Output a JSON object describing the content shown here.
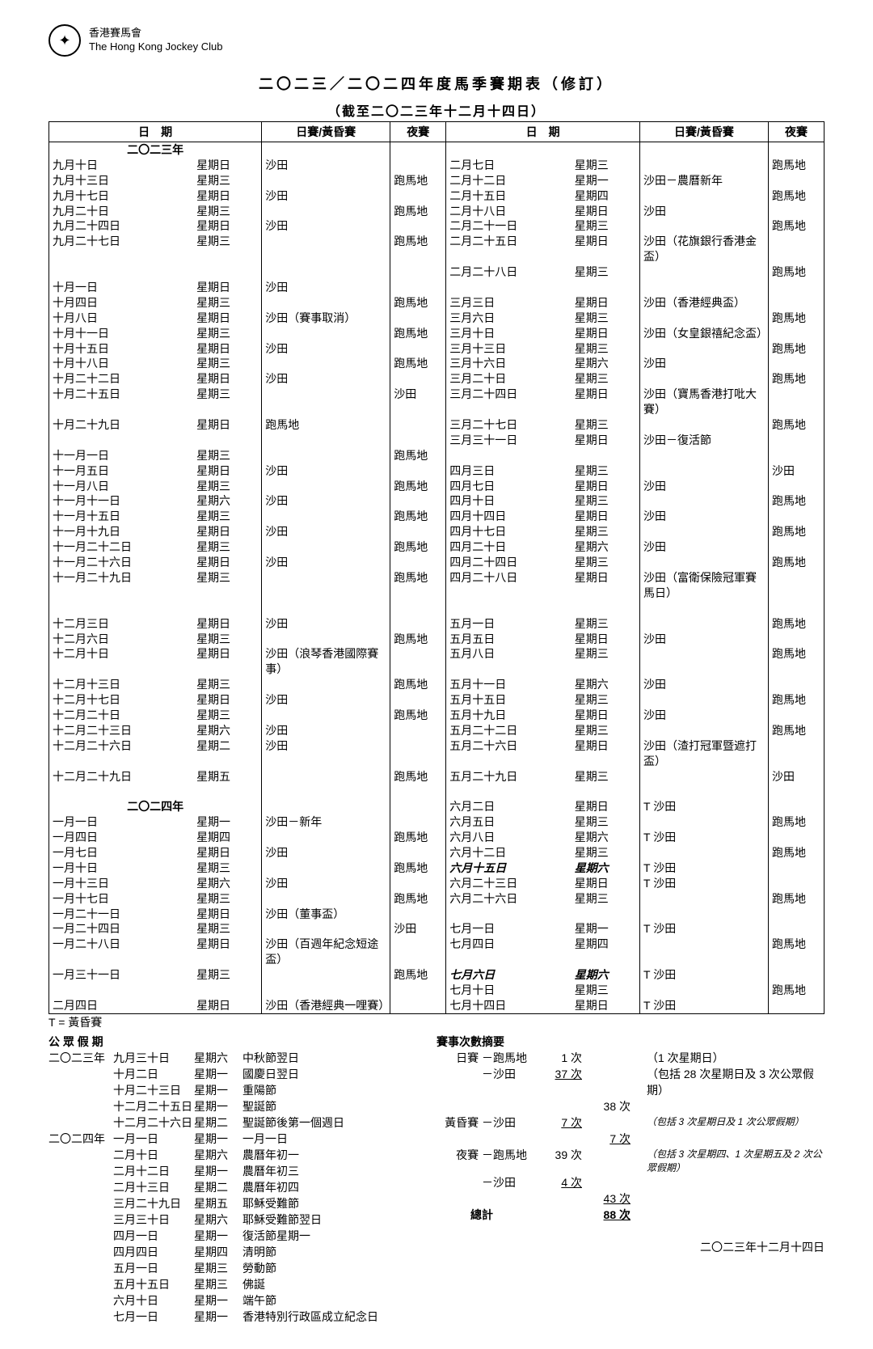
{
  "org": {
    "zh": "香港賽馬會",
    "en": "The Hong Kong Jockey Club"
  },
  "title": "二〇二三／二〇二四年度馬季賽期表（修訂）",
  "subtitle": "（截至二〇二三年十二月十四日）",
  "headers": {
    "date": "日　期",
    "day_twilight": "日賽/黃昏賽",
    "night": "夜賽"
  },
  "year2023": "二〇二三年",
  "year2024": "二〇二四年",
  "left_rows": [
    {
      "d": "九月十日",
      "w": "星期日",
      "a": "沙田",
      "n": ""
    },
    {
      "d": "九月十三日",
      "w": "星期三",
      "a": "",
      "n": "跑馬地"
    },
    {
      "d": "九月十七日",
      "w": "星期日",
      "a": "沙田",
      "n": ""
    },
    {
      "d": "九月二十日",
      "w": "星期三",
      "a": "",
      "n": "跑馬地"
    },
    {
      "d": "九月二十四日",
      "w": "星期日",
      "a": "沙田",
      "n": ""
    },
    {
      "d": "九月二十七日",
      "w": "星期三",
      "a": "",
      "n": "跑馬地"
    },
    {
      "sp": true
    },
    {
      "d": "十月一日",
      "w": "星期日",
      "a": "沙田",
      "n": ""
    },
    {
      "d": "十月四日",
      "w": "星期三",
      "a": "",
      "n": "跑馬地"
    },
    {
      "d": "十月八日",
      "w": "星期日",
      "a": "沙田（賽事取消）",
      "n": ""
    },
    {
      "d": "十月十一日",
      "w": "星期三",
      "a": "",
      "n": "跑馬地"
    },
    {
      "d": "十月十五日",
      "w": "星期日",
      "a": "沙田",
      "n": ""
    },
    {
      "d": "十月十八日",
      "w": "星期三",
      "a": "",
      "n": "跑馬地"
    },
    {
      "d": "十月二十二日",
      "w": "星期日",
      "a": "沙田",
      "n": ""
    },
    {
      "d": "十月二十五日",
      "w": "星期三",
      "a": "",
      "n": "沙田"
    },
    {
      "d": "十月二十九日",
      "w": "星期日",
      "a": "跑馬地",
      "n": ""
    },
    {
      "sp": true
    },
    {
      "d": "十一月一日",
      "w": "星期三",
      "a": "",
      "n": "跑馬地"
    },
    {
      "d": "十一月五日",
      "w": "星期日",
      "a": "沙田",
      "n": ""
    },
    {
      "d": "十一月八日",
      "w": "星期三",
      "a": "",
      "n": "跑馬地"
    },
    {
      "d": "十一月十一日",
      "w": "星期六",
      "a": "沙田",
      "n": ""
    },
    {
      "d": "十一月十五日",
      "w": "星期三",
      "a": "",
      "n": "跑馬地"
    },
    {
      "d": "十一月十九日",
      "w": "星期日",
      "a": "沙田",
      "n": ""
    },
    {
      "d": "十一月二十二日",
      "w": "星期三",
      "a": "",
      "n": "跑馬地"
    },
    {
      "d": "十一月二十六日",
      "w": "星期日",
      "a": "沙田",
      "n": ""
    },
    {
      "d": "十一月二十九日",
      "w": "星期三",
      "a": "",
      "n": "跑馬地"
    },
    {
      "sp": true
    },
    {
      "d": "十二月三日",
      "w": "星期日",
      "a": "沙田",
      "n": ""
    },
    {
      "d": "十二月六日",
      "w": "星期三",
      "a": "",
      "n": "跑馬地"
    },
    {
      "d": "十二月十日",
      "w": "星期日",
      "a": "沙田（浪琴香港國際賽事）",
      "n": ""
    },
    {
      "d": "十二月十三日",
      "w": "星期三",
      "a": "",
      "n": "跑馬地"
    },
    {
      "d": "十二月十七日",
      "w": "星期日",
      "a": "沙田",
      "n": ""
    },
    {
      "d": "十二月二十日",
      "w": "星期三",
      "a": "",
      "n": "跑馬地"
    },
    {
      "d": "十二月二十三日",
      "w": "星期六",
      "a": "沙田",
      "n": ""
    },
    {
      "d": "十二月二十六日",
      "w": "星期二",
      "a": "沙田",
      "n": ""
    },
    {
      "d": "十二月二十九日",
      "w": "星期五",
      "a": "",
      "n": "跑馬地"
    },
    {
      "sp": true
    },
    {
      "year": "二〇二四年"
    },
    {
      "d": "一月一日",
      "w": "星期一",
      "a": "沙田－新年",
      "n": ""
    },
    {
      "d": "一月四日",
      "w": "星期四",
      "a": "",
      "n": "跑馬地"
    },
    {
      "d": "一月七日",
      "w": "星期日",
      "a": "沙田",
      "n": ""
    },
    {
      "d": "一月十日",
      "w": "星期三",
      "a": "",
      "n": "跑馬地"
    },
    {
      "d": "一月十三日",
      "w": "星期六",
      "a": "沙田",
      "n": ""
    },
    {
      "d": "一月十七日",
      "w": "星期三",
      "a": "",
      "n": "跑馬地"
    },
    {
      "d": "一月二十一日",
      "w": "星期日",
      "a": "沙田（董事盃）",
      "n": ""
    },
    {
      "d": "一月二十四日",
      "w": "星期三",
      "a": "",
      "n": "沙田"
    },
    {
      "d": "一月二十八日",
      "w": "星期日",
      "a": "沙田（百週年紀念短途盃）",
      "n": ""
    },
    {
      "d": "一月三十一日",
      "w": "星期三",
      "a": "",
      "n": "跑馬地"
    },
    {
      "sp": true
    },
    {
      "d": "二月四日",
      "w": "星期日",
      "a": "沙田（香港經典一哩賽）",
      "n": ""
    }
  ],
  "right_rows": [
    {
      "d": "二月七日",
      "w": "星期三",
      "a": "",
      "n": "跑馬地"
    },
    {
      "d": "二月十二日",
      "w": "星期一",
      "a": "沙田－農曆新年",
      "n": ""
    },
    {
      "d": "二月十五日",
      "w": "星期四",
      "a": "",
      "n": "跑馬地"
    },
    {
      "d": "二月十八日",
      "w": "星期日",
      "a": "沙田",
      "n": ""
    },
    {
      "d": "二月二十一日",
      "w": "星期三",
      "a": "",
      "n": "跑馬地"
    },
    {
      "d": "二月二十五日",
      "w": "星期日",
      "a": "沙田（花旗銀行香港金盃）",
      "n": ""
    },
    {
      "d": "二月二十八日",
      "w": "星期三",
      "a": "",
      "n": "跑馬地"
    },
    {
      "sp": true
    },
    {
      "d": "三月三日",
      "w": "星期日",
      "a": "沙田（香港經典盃）",
      "n": ""
    },
    {
      "d": "三月六日",
      "w": "星期三",
      "a": "",
      "n": "跑馬地"
    },
    {
      "d": "三月十日",
      "w": "星期日",
      "a": "沙田（女皇銀禧紀念盃）",
      "n": ""
    },
    {
      "d": "三月十三日",
      "w": "星期三",
      "a": "",
      "n": "跑馬地"
    },
    {
      "d": "三月十六日",
      "w": "星期六",
      "a": "沙田",
      "n": ""
    },
    {
      "d": "三月二十日",
      "w": "星期三",
      "a": "",
      "n": "跑馬地"
    },
    {
      "d": "三月二十四日",
      "w": "星期日",
      "a": "沙田（寶馬香港打吡大賽）",
      "n": ""
    },
    {
      "d": "三月二十七日",
      "w": "星期三",
      "a": "",
      "n": "跑馬地"
    },
    {
      "d": "三月三十一日",
      "w": "星期日",
      "a": "沙田－復活節",
      "n": ""
    },
    {
      "sp": true
    },
    {
      "d": "四月三日",
      "w": "星期三",
      "a": "",
      "n": "沙田"
    },
    {
      "d": "四月七日",
      "w": "星期日",
      "a": "沙田",
      "n": ""
    },
    {
      "d": "四月十日",
      "w": "星期三",
      "a": "",
      "n": "跑馬地"
    },
    {
      "d": "四月十四日",
      "w": "星期日",
      "a": "沙田",
      "n": ""
    },
    {
      "d": "四月十七日",
      "w": "星期三",
      "a": "",
      "n": "跑馬地"
    },
    {
      "d": "四月二十日",
      "w": "星期六",
      "a": "沙田",
      "n": ""
    },
    {
      "d": "四月二十四日",
      "w": "星期三",
      "a": "",
      "n": "跑馬地"
    },
    {
      "d": "四月二十八日",
      "w": "星期日",
      "a": "沙田（富衛保險冠軍賽馬日）",
      "n": ""
    },
    {
      "sp": true
    },
    {
      "d": "五月一日",
      "w": "星期三",
      "a": "",
      "n": "跑馬地"
    },
    {
      "d": "五月五日",
      "w": "星期日",
      "a": "沙田",
      "n": ""
    },
    {
      "d": "五月八日",
      "w": "星期三",
      "a": "",
      "n": "跑馬地"
    },
    {
      "d": "五月十一日",
      "w": "星期六",
      "a": "沙田",
      "n": ""
    },
    {
      "d": "五月十五日",
      "w": "星期三",
      "a": "",
      "n": "跑馬地"
    },
    {
      "d": "五月十九日",
      "w": "星期日",
      "a": "沙田",
      "n": ""
    },
    {
      "d": "五月二十二日",
      "w": "星期三",
      "a": "",
      "n": "跑馬地"
    },
    {
      "d": "五月二十六日",
      "w": "星期日",
      "a": "沙田（渣打冠軍暨遮打盃）",
      "n": ""
    },
    {
      "d": "五月二十九日",
      "w": "星期三",
      "a": "",
      "n": "沙田"
    },
    {
      "sp": true
    },
    {
      "d": "六月二日",
      "w": "星期日",
      "a": "T 沙田",
      "n": ""
    },
    {
      "d": "六月五日",
      "w": "星期三",
      "a": "",
      "n": "跑馬地"
    },
    {
      "d": "六月八日",
      "w": "星期六",
      "a": "T 沙田",
      "n": ""
    },
    {
      "d": "六月十二日",
      "w": "星期三",
      "a": "",
      "n": "跑馬地"
    },
    {
      "d": "六月十五日",
      "w": "星期六",
      "a": "T 沙田",
      "n": "",
      "it": true
    },
    {
      "d": "六月二十三日",
      "w": "星期日",
      "a": "T 沙田",
      "n": ""
    },
    {
      "d": "六月二十六日",
      "w": "星期三",
      "a": "",
      "n": "跑馬地"
    },
    {
      "sp": true
    },
    {
      "d": "七月一日",
      "w": "星期一",
      "a": "T 沙田",
      "n": ""
    },
    {
      "d": "七月四日",
      "w": "星期四",
      "a": "",
      "n": "跑馬地"
    },
    {
      "d": "七月六日",
      "w": "星期六",
      "a": "T 沙田",
      "n": "",
      "it": true
    },
    {
      "d": "七月十日",
      "w": "星期三",
      "a": "",
      "n": "跑馬地"
    },
    {
      "d": "七月十四日",
      "w": "星期日",
      "a": "T 沙田",
      "n": ""
    }
  ],
  "t_note": "T = 黃昏賽",
  "holidays_title": "公 眾 假 期",
  "holidays": [
    {
      "y": "二〇二三年",
      "d": "九月三十日",
      "w": "星期六",
      "n": "中秋節翌日"
    },
    {
      "y": "",
      "d": "十月二日",
      "w": "星期一",
      "n": "國慶日翌日"
    },
    {
      "y": "",
      "d": "十月二十三日",
      "w": "星期一",
      "n": "重陽節"
    },
    {
      "y": "",
      "d": "十二月二十五日",
      "w": "星期一",
      "n": "聖誕節"
    },
    {
      "y": "",
      "d": "十二月二十六日",
      "w": "星期二",
      "n": "聖誕節後第一個週日"
    },
    {
      "y": "二〇二四年",
      "d": "一月一日",
      "w": "星期一",
      "n": "一月一日"
    },
    {
      "y": "",
      "d": "二月十日",
      "w": "星期六",
      "n": "農曆年初一"
    },
    {
      "y": "",
      "d": "二月十二日",
      "w": "星期一",
      "n": "農曆年初三"
    },
    {
      "y": "",
      "d": "二月十三日",
      "w": "星期二",
      "n": "農曆年初四"
    },
    {
      "y": "",
      "d": "三月二十九日",
      "w": "星期五",
      "n": "耶穌受難節"
    },
    {
      "y": "",
      "d": "三月三十日",
      "w": "星期六",
      "n": "耶穌受難節翌日"
    },
    {
      "y": "",
      "d": "四月一日",
      "w": "星期一",
      "n": "復活節星期一"
    },
    {
      "y": "",
      "d": "四月四日",
      "w": "星期四",
      "n": "清明節"
    },
    {
      "y": "",
      "d": "五月一日",
      "w": "星期三",
      "n": "勞動節"
    },
    {
      "y": "",
      "d": "五月十五日",
      "w": "星期三",
      "n": "佛誕"
    },
    {
      "y": "",
      "d": "六月十日",
      "w": "星期一",
      "n": "端午節"
    },
    {
      "y": "",
      "d": "七月一日",
      "w": "星期一",
      "n": "香港特別行政區成立紀念日"
    }
  ],
  "summary_title": "賽事次數摘要",
  "summary": [
    {
      "a": "日賽 －",
      "b": "跑馬地",
      "c": "1 次",
      "d": "",
      "e": "（1 次星期日）"
    },
    {
      "a": "－",
      "b": "沙田",
      "c": "37 次",
      "u": true,
      "d": "",
      "e": "（包括 28 次星期日及 3 次公眾假期）"
    },
    {
      "a": "",
      "b": "",
      "c": "",
      "d": "38 次",
      "e": ""
    },
    {
      "a": "黃昏賽 －",
      "b": "沙田",
      "c": "7 次",
      "u": true,
      "d": "",
      "e": "（包括 3 次星期日及 1 次公眾假期）",
      "it": true
    },
    {
      "a": "",
      "b": "",
      "c": "",
      "d": "7 次",
      "u": true,
      "e": ""
    },
    {
      "a": "夜賽 －",
      "b": "跑馬地",
      "c": "39 次",
      "d": "",
      "e": "（包括 3 次星期四、1 次星期五及 2 次公眾假期）",
      "small": true
    },
    {
      "a": "－",
      "b": "沙田",
      "c": "4 次",
      "u": true,
      "d": "",
      "e": ""
    },
    {
      "a": "",
      "b": "",
      "c": "",
      "d": "43 次",
      "u": true,
      "e": ""
    },
    {
      "a": "總計",
      "b": "",
      "c": "",
      "d": "88 次",
      "u": true,
      "bold": true,
      "e": ""
    }
  ],
  "footer_date": "二〇二三年十二月十四日"
}
